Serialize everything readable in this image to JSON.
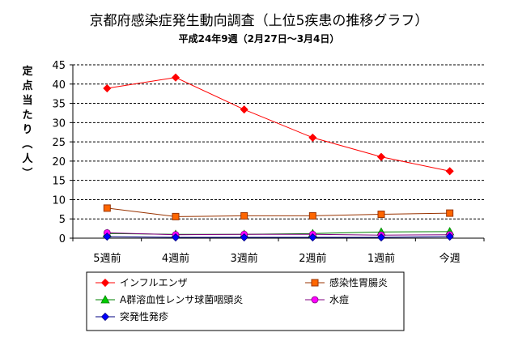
{
  "chart_data": {
    "type": "line",
    "title": "京都府感染症発生動向調査（上位5疾患の推移グラフ）",
    "subtitle": "平成24年9週（2月27日～3月4日）",
    "xlabel": "",
    "ylabel": "定点当たり（人）",
    "categories": [
      "5週前",
      "4週前",
      "3週前",
      "2週前",
      "1週前",
      "今週"
    ],
    "ylim": [
      0,
      45
    ],
    "yticks": [
      0,
      5,
      10,
      15,
      20,
      25,
      30,
      35,
      40,
      45
    ],
    "grid": true,
    "legend_position": "bottom",
    "series": [
      {
        "name": "インフルエンザ",
        "color": "#ff0000",
        "marker": "diamond",
        "marker_fill": "#ff0000",
        "values": [
          38.9,
          41.7,
          33.4,
          26.1,
          21.1,
          17.4
        ]
      },
      {
        "name": "感染性胃腸炎",
        "color": "#993300",
        "marker": "square",
        "marker_fill": "#ff6600",
        "values": [
          7.8,
          5.6,
          5.8,
          5.8,
          6.2,
          6.5
        ]
      },
      {
        "name": "A群溶血性レンサ球菌咽頭炎",
        "color": "#008000",
        "marker": "triangle",
        "marker_fill": "#00cc00",
        "values": [
          1.2,
          1.0,
          1.0,
          1.2,
          1.6,
          1.7
        ]
      },
      {
        "name": "水痘",
        "color": "#800080",
        "marker": "circle",
        "marker_fill": "#ff00ff",
        "values": [
          1.4,
          0.9,
          1.0,
          1.0,
          0.8,
          0.9
        ]
      },
      {
        "name": "突発性発疹",
        "color": "#000080",
        "marker": "diamond",
        "marker_fill": "#0000ff",
        "values": [
          0.4,
          0.2,
          0.2,
          0.2,
          0.2,
          0.4
        ]
      }
    ]
  }
}
